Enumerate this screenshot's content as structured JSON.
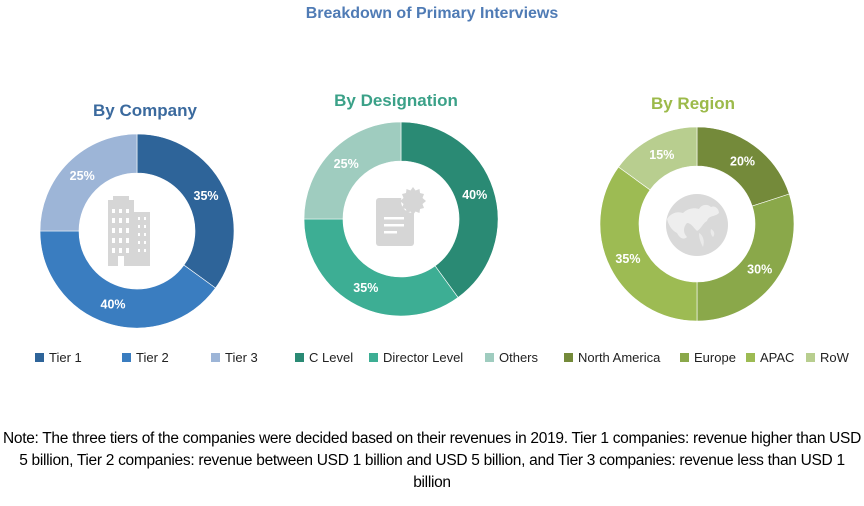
{
  "title": "Breakdown of Primary Interviews",
  "chart_data": [
    {
      "type": "pie",
      "variant": "donut",
      "title": "By Company",
      "title_color": "#3B6A9E",
      "center_icon": "office-building-icon",
      "categories": [
        "Tier 1",
        "Tier 2",
        "Tier 3"
      ],
      "values": [
        35,
        40,
        25
      ],
      "labels": [
        "35%",
        "40%",
        "25%"
      ],
      "colors": [
        "#2E6499",
        "#3A7DC0",
        "#9DB5D7"
      ],
      "legend": "bottom"
    },
    {
      "type": "pie",
      "variant": "donut",
      "title": "By Designation",
      "title_color": "#3BA188",
      "center_icon": "certificate-document-icon",
      "categories": [
        "C Level",
        "Director Level",
        "Others"
      ],
      "values": [
        40,
        35,
        25
      ],
      "labels": [
        "40%",
        "35%",
        "25%"
      ],
      "colors": [
        "#2A8A74",
        "#3DAE94",
        "#9FCCBF"
      ],
      "legend": "bottom"
    },
    {
      "type": "pie",
      "variant": "donut",
      "title": "By Region",
      "title_color": "#9CBA4A",
      "center_icon": "globe-icon",
      "categories": [
        "North America",
        "Europe",
        "APAC",
        "RoW"
      ],
      "values": [
        20,
        30,
        35,
        15
      ],
      "labels": [
        "20%",
        "30%",
        "35%",
        "15%"
      ],
      "colors": [
        "#748A3A",
        "#8AA84A",
        "#9DBB53",
        "#B8CE8F"
      ],
      "legend": "bottom"
    }
  ],
  "note": "Note: The three tiers of the companies were decided based on their revenues in 2019. Tier 1 companies: revenue higher than USD 5 billion, Tier 2 companies: revenue between USD 1 billion and USD 5 billion, and Tier 3 companies: revenue less than USD 1 billion"
}
